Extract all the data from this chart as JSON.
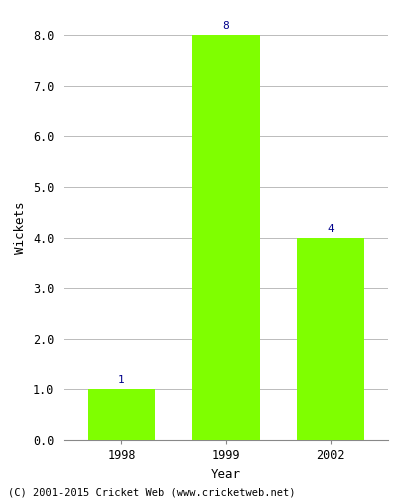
{
  "categories": [
    "1998",
    "1999",
    "2002"
  ],
  "values": [
    1,
    8,
    4
  ],
  "bar_color": "#7FFF00",
  "bar_width": 0.65,
  "xlabel": "Year",
  "ylabel": "Wickets",
  "ylim": [
    0.0,
    8.4
  ],
  "yticks": [
    0.0,
    1.0,
    2.0,
    3.0,
    4.0,
    5.0,
    6.0,
    7.0,
    8.0
  ],
  "label_color": "#00008B",
  "label_fontsize": 8,
  "xlabel_fontsize": 9,
  "ylabel_fontsize": 9,
  "tick_fontsize": 8.5,
  "footer_text": "(C) 2001-2015 Cricket Web (www.cricketweb.net)",
  "footer_fontsize": 7.5,
  "background_color": "#ffffff",
  "grid_color": "#bbbbbb",
  "spine_color": "#888888"
}
